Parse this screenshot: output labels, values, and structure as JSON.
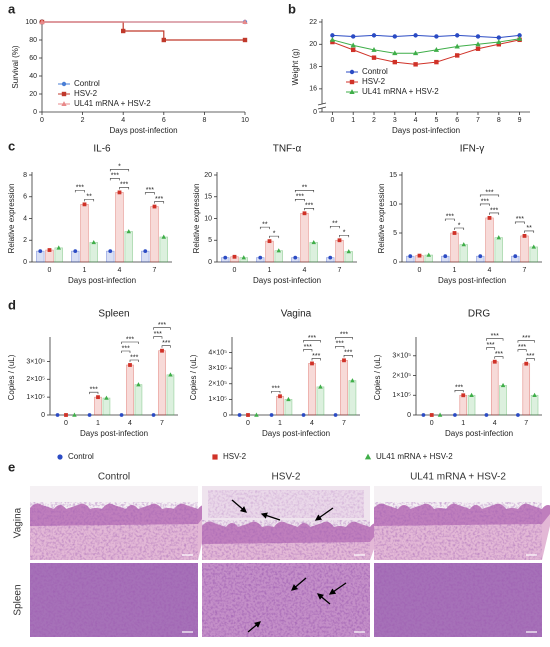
{
  "panel_labels": [
    "a",
    "b",
    "c",
    "d",
    "e"
  ],
  "legend": {
    "series": [
      {
        "name": "Control",
        "color": "#2b4bc4",
        "marker": "circle"
      },
      {
        "name": "HSV-2",
        "color": "#d03228",
        "marker": "square"
      },
      {
        "name": "UL41 mRNA + HSV-2",
        "color": "#3fae49",
        "marker": "triangle"
      }
    ]
  },
  "chart_data": [
    {
      "type": "line",
      "step": true,
      "x_label": "Days post-infection",
      "y_label": "Survival (%)",
      "xlim": [
        0,
        10
      ],
      "xticks": [
        0,
        2,
        4,
        6,
        8,
        10
      ],
      "ylim": [
        0,
        100
      ],
      "yticks": [
        0,
        20,
        40,
        60,
        80,
        100
      ],
      "legend": "lower left",
      "series": [
        {
          "name": "Control",
          "color": "#4a7fd6",
          "x": [
            0,
            10
          ],
          "values": [
            100,
            100
          ]
        },
        {
          "name": "HSV-2",
          "color": "#c0392b",
          "x": [
            0,
            4,
            6,
            10
          ],
          "values": [
            100,
            90,
            80,
            80
          ]
        },
        {
          "name": "UL41 mRNA + HSV-2",
          "color": "#e88a8a",
          "x": [
            0,
            10
          ],
          "values": [
            100,
            100
          ]
        }
      ]
    },
    {
      "type": "line",
      "x_label": "Days post-infection",
      "y_label": "Weight (g)",
      "x": [
        0,
        1,
        2,
        3,
        4,
        5,
        6,
        7,
        8,
        9
      ],
      "xlim": [
        -0.5,
        9.5
      ],
      "xticks": [
        0,
        1,
        2,
        3,
        4,
        5,
        6,
        7,
        8,
        9
      ],
      "ylim": [
        15,
        22
      ],
      "yticks": [
        16,
        18,
        20,
        22
      ],
      "y_break_tick": 0,
      "legend": "lower left",
      "series": [
        {
          "name": "Control",
          "color": "#2b4bc4",
          "values": [
            20.8,
            20.7,
            20.8,
            20.7,
            20.8,
            20.7,
            20.8,
            20.7,
            20.6,
            20.8
          ]
        },
        {
          "name": "HSV-2",
          "color": "#d03228",
          "values": [
            20.2,
            19.5,
            18.8,
            18.4,
            18.2,
            18.4,
            19.0,
            19.6,
            20.0,
            20.4
          ]
        },
        {
          "name": "UL41 mRNA + HSV-2",
          "color": "#3fae49",
          "values": [
            20.4,
            19.9,
            19.5,
            19.2,
            19.2,
            19.5,
            19.8,
            20.0,
            20.2,
            20.5
          ]
        }
      ]
    },
    {
      "type": "bar",
      "title": "IL-6",
      "x_label": "Days post-infection",
      "y_label": "Relative expression",
      "categories": [
        "0",
        "1",
        "4",
        "7"
      ],
      "ylim": [
        0,
        8
      ],
      "yticks": [
        0,
        2,
        4,
        6,
        8
      ],
      "series": [
        {
          "values": [
            1.0,
            1.0,
            1.0,
            1.0
          ]
        },
        {
          "values": [
            1.1,
            5.3,
            6.4,
            5.1
          ]
        },
        {
          "values": [
            1.3,
            1.8,
            2.8,
            2.3
          ]
        }
      ],
      "significance": [
        {
          "category": 1,
          "groups": [
            1,
            2
          ],
          "label": "**"
        },
        {
          "category": 1,
          "groups": [
            0,
            1
          ],
          "label": "***"
        },
        {
          "category": 2,
          "groups": [
            1,
            2
          ],
          "label": "***"
        },
        {
          "category": 2,
          "groups": [
            0,
            1
          ],
          "label": "***"
        },
        {
          "category": 2,
          "groups": [
            0,
            2
          ],
          "label": "*"
        },
        {
          "category": 3,
          "groups": [
            1,
            2
          ],
          "label": "***"
        },
        {
          "category": 3,
          "groups": [
            0,
            1
          ],
          "label": "***"
        }
      ]
    },
    {
      "type": "bar",
      "title": "TNF-α",
      "x_label": "Days post-infection",
      "y_label": "Relative expression",
      "categories": [
        "0",
        "1",
        "4",
        "7"
      ],
      "ylim": [
        0,
        20
      ],
      "yticks": [
        0,
        5,
        10,
        15,
        20
      ],
      "series": [
        {
          "values": [
            1.0,
            1.0,
            1.0,
            1.0
          ]
        },
        {
          "values": [
            1.2,
            4.8,
            11.2,
            5.0
          ]
        },
        {
          "values": [
            1.0,
            2.6,
            4.5,
            2.4
          ]
        }
      ],
      "significance": [
        {
          "category": 1,
          "groups": [
            1,
            2
          ],
          "label": "*"
        },
        {
          "category": 1,
          "groups": [
            0,
            1
          ],
          "label": "**"
        },
        {
          "category": 2,
          "groups": [
            1,
            2
          ],
          "label": "***"
        },
        {
          "category": 2,
          "groups": [
            0,
            1
          ],
          "label": "***"
        },
        {
          "category": 2,
          "groups": [
            0,
            2
          ],
          "label": "**"
        },
        {
          "category": 3,
          "groups": [
            1,
            2
          ],
          "label": "*"
        },
        {
          "category": 3,
          "groups": [
            0,
            1
          ],
          "label": "**"
        }
      ]
    },
    {
      "type": "bar",
      "title": "IFN-γ",
      "x_label": "Days post-infection",
      "y_label": "Relative expression",
      "categories": [
        "0",
        "1",
        "4",
        "7"
      ],
      "ylim": [
        0,
        15
      ],
      "yticks": [
        0,
        5,
        10,
        15
      ],
      "series": [
        {
          "values": [
            1.0,
            1.0,
            1.0,
            1.0
          ]
        },
        {
          "values": [
            1.1,
            5.0,
            7.6,
            4.5
          ]
        },
        {
          "values": [
            1.2,
            3.0,
            4.2,
            2.6
          ]
        }
      ],
      "significance": [
        {
          "category": 1,
          "groups": [
            1,
            2
          ],
          "label": "*"
        },
        {
          "category": 1,
          "groups": [
            0,
            1
          ],
          "label": "***"
        },
        {
          "category": 2,
          "groups": [
            1,
            2
          ],
          "label": "***"
        },
        {
          "category": 2,
          "groups": [
            0,
            1
          ],
          "label": "***"
        },
        {
          "category": 2,
          "groups": [
            0,
            2
          ],
          "label": "***"
        },
        {
          "category": 3,
          "groups": [
            1,
            2
          ],
          "label": "**"
        },
        {
          "category": 3,
          "groups": [
            0,
            1
          ],
          "label": "***"
        }
      ]
    },
    {
      "type": "bar",
      "title": "Spleen",
      "x_label": "Days post-infection",
      "y_label": "Copies / (uL)",
      "categories": [
        "0",
        "1",
        "4",
        "7"
      ],
      "ylim": [
        0,
        420000
      ],
      "yticks": [
        0,
        {
          "value": 100000,
          "label": "1×10⁵"
        },
        {
          "value": 200000,
          "label": "2×10⁵"
        },
        {
          "value": 300000,
          "label": "3×10⁵"
        }
      ],
      "series": [
        {
          "values": [
            0,
            0,
            0,
            0
          ]
        },
        {
          "values": [
            0,
            100000,
            280000,
            360000
          ]
        },
        {
          "values": [
            0,
            95000,
            170000,
            225000
          ]
        }
      ],
      "significance": [
        {
          "category": 1,
          "groups": [
            0,
            1
          ],
          "label": "***"
        },
        {
          "category": 2,
          "groups": [
            1,
            2
          ],
          "label": "***"
        },
        {
          "category": 2,
          "groups": [
            0,
            1
          ],
          "label": "***"
        },
        {
          "category": 2,
          "groups": [
            0,
            2
          ],
          "label": "***"
        },
        {
          "category": 3,
          "groups": [
            1,
            2
          ],
          "label": "***"
        },
        {
          "category": 3,
          "groups": [
            0,
            1
          ],
          "label": "***"
        },
        {
          "category": 3,
          "groups": [
            0,
            2
          ],
          "label": "***"
        }
      ]
    },
    {
      "type": "bar",
      "title": "Vagina",
      "x_label": "Days post-infection",
      "y_label": "Copies / (uL)",
      "categories": [
        "0",
        "1",
        "4",
        "7"
      ],
      "ylim": [
        0,
        480000
      ],
      "yticks": [
        0,
        {
          "value": 100000,
          "label": "1×10⁵"
        },
        {
          "value": 200000,
          "label": "2×10⁵"
        },
        {
          "value": 300000,
          "label": "3×10⁵"
        },
        {
          "value": 400000,
          "label": "4×10⁵"
        }
      ],
      "series": [
        {
          "values": [
            0,
            0,
            0,
            0
          ]
        },
        {
          "values": [
            0,
            120000,
            330000,
            350000
          ]
        },
        {
          "values": [
            0,
            100000,
            180000,
            220000
          ]
        }
      ],
      "significance": [
        {
          "category": 1,
          "groups": [
            0,
            1
          ],
          "label": "***"
        },
        {
          "category": 2,
          "groups": [
            1,
            2
          ],
          "label": "***"
        },
        {
          "category": 2,
          "groups": [
            0,
            1
          ],
          "label": "***"
        },
        {
          "category": 2,
          "groups": [
            0,
            2
          ],
          "label": "***"
        },
        {
          "category": 3,
          "groups": [
            1,
            2
          ],
          "label": "***"
        },
        {
          "category": 3,
          "groups": [
            0,
            1
          ],
          "label": "***"
        },
        {
          "category": 3,
          "groups": [
            0,
            2
          ],
          "label": "***"
        }
      ]
    },
    {
      "type": "bar",
      "title": "DRG",
      "x_label": "Days post-infection",
      "y_label": "Copies / (uL)",
      "categories": [
        "0",
        "1",
        "4",
        "7"
      ],
      "ylim": [
        0,
        380000
      ],
      "yticks": [
        0,
        {
          "value": 100000,
          "label": "1×10⁵"
        },
        {
          "value": 200000,
          "label": "2×10⁵"
        },
        {
          "value": 300000,
          "label": "3×10⁵"
        }
      ],
      "series": [
        {
          "values": [
            0,
            0,
            0,
            0
          ]
        },
        {
          "values": [
            0,
            100000,
            270000,
            260000
          ]
        },
        {
          "values": [
            0,
            100000,
            150000,
            100000
          ]
        }
      ],
      "significance": [
        {
          "category": 1,
          "groups": [
            0,
            1
          ],
          "label": "***"
        },
        {
          "category": 2,
          "groups": [
            1,
            2
          ],
          "label": "***"
        },
        {
          "category": 2,
          "groups": [
            0,
            1
          ],
          "label": "***"
        },
        {
          "category": 2,
          "groups": [
            0,
            2
          ],
          "label": "***"
        },
        {
          "category": 3,
          "groups": [
            1,
            2
          ],
          "label": "***"
        },
        {
          "category": 3,
          "groups": [
            0,
            1
          ],
          "label": "***"
        },
        {
          "category": 3,
          "groups": [
            0,
            2
          ],
          "label": "***"
        }
      ]
    }
  ],
  "histology": {
    "columns": [
      "Control",
      "HSV-2",
      "UL41 mRNA + HSV-2"
    ],
    "rows": [
      "Vagina",
      "Spleen"
    ]
  }
}
